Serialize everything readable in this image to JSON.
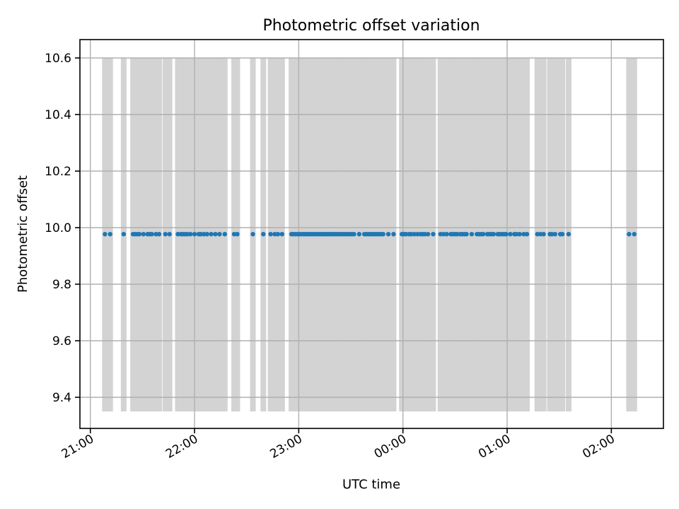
{
  "chart_data": {
    "type": "scatter",
    "title": "Photometric offset variation",
    "xlabel": "UTC time",
    "ylabel": "Photometric offset",
    "x_tick_labels": [
      "21:00",
      "22:00",
      "23:00",
      "00:00",
      "01:00",
      "02:00"
    ],
    "x_tick_hours": [
      21,
      22,
      23,
      24,
      25,
      26
    ],
    "y_ticks": [
      9.4,
      9.6,
      9.8,
      10.0,
      10.2,
      10.4,
      10.6
    ],
    "y_tick_labels": [
      "9.4",
      "9.6",
      "9.8",
      "10.0",
      "10.2",
      "10.4",
      "10.6"
    ],
    "xlim_hours": [
      20.9,
      26.5
    ],
    "ylim": [
      9.29,
      10.665
    ],
    "grid": true,
    "point_color": "#1f77b4",
    "band_color": "#d3d3d3",
    "band_range": [
      9.35,
      10.6
    ],
    "series": [
      {
        "value": 9.977,
        "x_hours": [
          21.14,
          21.19,
          21.32,
          21.41,
          21.43,
          21.45,
          21.47,
          21.51,
          21.55,
          21.57,
          21.59,
          21.63,
          21.66,
          21.72,
          21.76,
          21.84,
          21.87,
          21.89,
          21.91,
          21.93,
          21.96,
          22.0,
          22.04,
          22.06,
          22.09,
          22.12,
          22.16,
          22.2,
          22.24,
          22.29,
          22.38,
          22.41,
          22.56,
          22.66,
          22.73,
          22.77,
          22.8,
          22.84,
          22.93,
          22.95,
          22.97,
          22.99,
          23.01,
          23.03,
          23.05,
          23.07,
          23.09,
          23.11,
          23.13,
          23.15,
          23.17,
          23.19,
          23.21,
          23.23,
          23.25,
          23.27,
          23.29,
          23.31,
          23.33,
          23.35,
          23.37,
          23.39,
          23.41,
          23.43,
          23.45,
          23.47,
          23.49,
          23.51,
          23.53,
          23.58,
          23.63,
          23.65,
          23.67,
          23.69,
          23.71,
          23.73,
          23.75,
          23.77,
          23.79,
          23.81,
          23.86,
          23.91,
          23.99,
          24.01,
          24.03,
          24.06,
          24.08,
          24.11,
          24.14,
          24.17,
          24.19,
          24.21,
          24.24,
          24.29,
          24.36,
          24.39,
          24.42,
          24.46,
          24.48,
          24.5,
          24.52,
          24.55,
          24.57,
          24.59,
          24.61,
          24.66,
          24.71,
          24.73,
          24.75,
          24.77,
          24.81,
          24.83,
          24.85,
          24.87,
          24.91,
          24.93,
          24.95,
          24.97,
          24.99,
          25.03,
          25.07,
          25.09,
          25.12,
          25.16,
          25.19,
          25.29,
          25.32,
          25.35,
          25.41,
          25.43,
          25.46,
          25.51,
          25.53,
          25.59,
          26.17,
          26.22
        ]
      }
    ]
  }
}
